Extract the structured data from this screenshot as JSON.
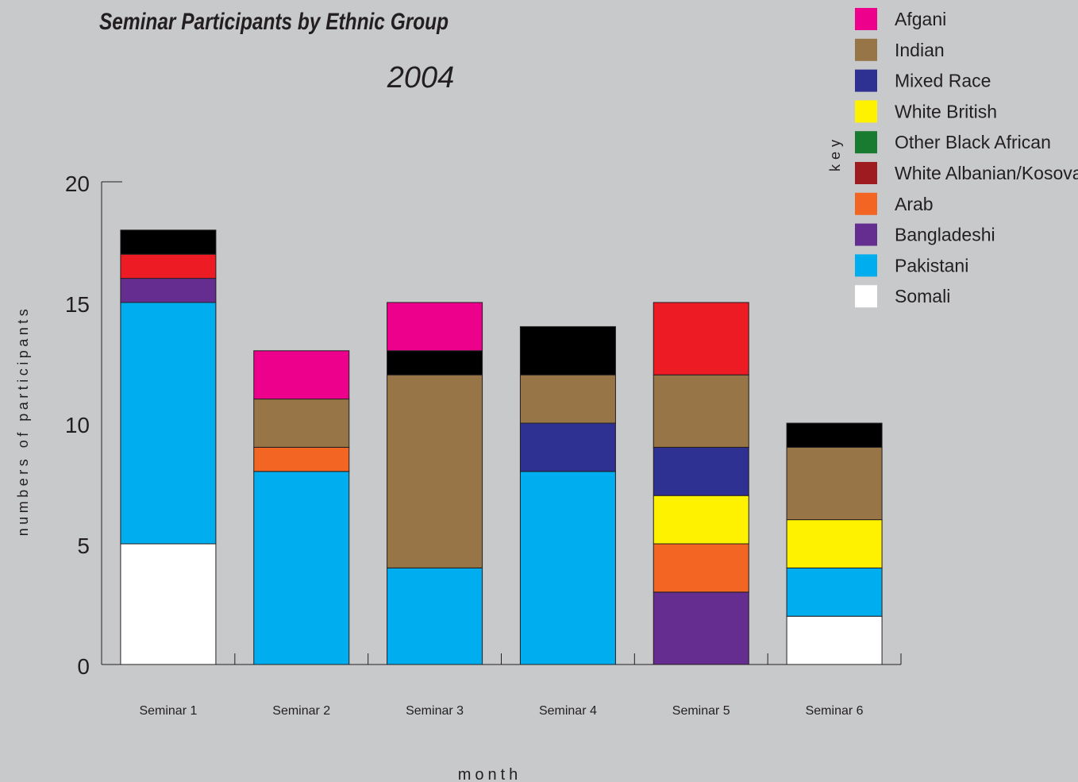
{
  "chart_data": {
    "type": "bar",
    "stacked": true,
    "title": "Seminar Participants by Ethnic Group",
    "subtitle": "2004",
    "xlabel": "month",
    "ylabel": "numbers of participants",
    "legend_title": "key",
    "legend_position": "top-right",
    "ylim": [
      0,
      20
    ],
    "yticks": [
      "0",
      "5",
      "10",
      "15",
      "20"
    ],
    "categories": [
      "Seminar 1",
      "Seminar 2",
      "Seminar 3",
      "Seminar 4",
      "Seminar 5",
      "Seminar 6"
    ],
    "series": [
      {
        "name": "Somali",
        "color": "#ffffff",
        "values": [
          5,
          0,
          0,
          0,
          0,
          2
        ]
      },
      {
        "name": "Pakistani",
        "color": "#00adee",
        "values": [
          10,
          8,
          4,
          8,
          0,
          2
        ]
      },
      {
        "name": "Bangladeshi",
        "color": "#662d91",
        "values": [
          1,
          0,
          0,
          0,
          3,
          0
        ]
      },
      {
        "name": "Arab",
        "color": "#f26522",
        "values": [
          0,
          1,
          0,
          0,
          2,
          0
        ]
      },
      {
        "name": "White British",
        "color": "#fff200",
        "values": [
          0,
          0,
          0,
          0,
          2,
          2
        ]
      },
      {
        "name": "Mixed Race",
        "color": "#2e3192",
        "values": [
          0,
          0,
          0,
          2,
          2,
          0
        ]
      },
      {
        "name": "Indian",
        "color": "#977547",
        "values": [
          0,
          2,
          8,
          2,
          3,
          3
        ]
      },
      {
        "name": "",
        "color": "#ed1c24",
        "values": [
          1,
          0,
          0,
          0,
          3,
          0
        ]
      },
      {
        "name": "",
        "color": "#000000",
        "values": [
          1,
          0,
          1,
          2,
          0,
          1
        ]
      },
      {
        "name": "Afgani",
        "color": "#ec008c",
        "values": [
          0,
          2,
          2,
          0,
          0,
          0
        ]
      }
    ],
    "legend": [
      {
        "label": "Afgani",
        "color": "#ec008c"
      },
      {
        "label": "Indian",
        "color": "#977547"
      },
      {
        "label": "Mixed Race",
        "color": "#2e3192"
      },
      {
        "label": "White British",
        "color": "#fff200"
      },
      {
        "label": "Other Black African",
        "color": "#197b30"
      },
      {
        "label": "White Albanian/Kosovan",
        "color": "#9e1b20"
      },
      {
        "label": "Arab",
        "color": "#f26522"
      },
      {
        "label": "Bangladeshi",
        "color": "#662d91"
      },
      {
        "label": "Pakistani",
        "color": "#00adee"
      },
      {
        "label": "Somali",
        "color": "#ffffff"
      }
    ]
  }
}
